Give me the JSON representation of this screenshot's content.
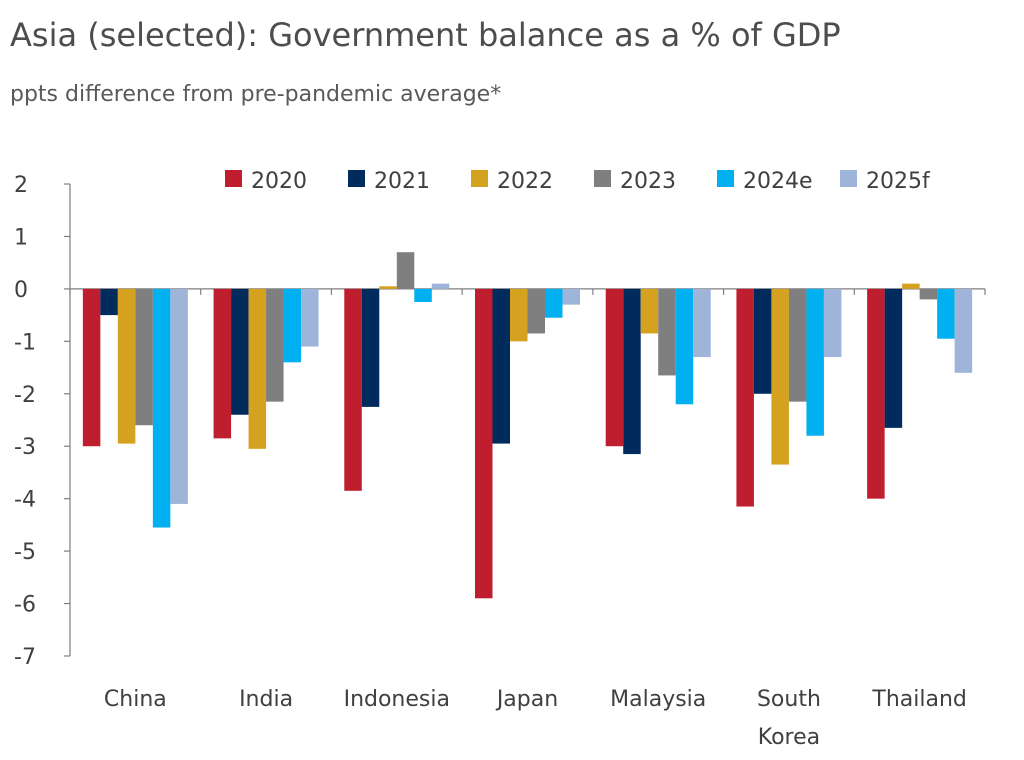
{
  "chart_data": {
    "type": "bar",
    "title": "Asia (selected): Government balance as a % of GDP",
    "subtitle": "ppts difference from pre-pandemic average*",
    "categories": [
      "China",
      "India",
      "Indonesia",
      "Japan",
      "Malaysia",
      "South Korea",
      "Thailand"
    ],
    "category_lines": [
      [
        "China"
      ],
      [
        "India"
      ],
      [
        "Indonesia"
      ],
      [
        "Japan"
      ],
      [
        "Malaysia"
      ],
      [
        "South",
        "Korea"
      ],
      [
        "Thailand"
      ]
    ],
    "series": [
      {
        "name": "2020",
        "color": "#be1e2d",
        "values": [
          -3.0,
          -2.85,
          -3.85,
          -5.9,
          -3.0,
          -4.15,
          -4.0
        ]
      },
      {
        "name": "2021",
        "color": "#002b5c",
        "values": [
          -0.5,
          -2.4,
          -2.25,
          -2.95,
          -3.15,
          -2.0,
          -2.65
        ]
      },
      {
        "name": "2022",
        "color": "#d4a21f",
        "values": [
          -2.95,
          -3.05,
          0.05,
          -1.0,
          -0.85,
          -3.35,
          0.1
        ]
      },
      {
        "name": "2023",
        "color": "#7f7f7f",
        "values": [
          -2.6,
          -2.15,
          0.7,
          -0.85,
          -1.65,
          -2.15,
          -0.2
        ]
      },
      {
        "name": "2024e",
        "color": "#00b0f0",
        "values": [
          -4.55,
          -1.4,
          -0.25,
          -0.55,
          -2.2,
          -2.8,
          -0.95
        ]
      },
      {
        "name": "2025f",
        "color": "#9eb4d8",
        "values": [
          -4.1,
          -1.1,
          0.1,
          -0.3,
          -1.3,
          -1.3,
          -1.6
        ]
      }
    ],
    "ylim": [
      -7,
      2
    ],
    "yticks": [
      2,
      1,
      0,
      -1,
      -2,
      -3,
      -4,
      -5,
      -6,
      -7
    ],
    "grid": false,
    "legend_position": "top"
  }
}
